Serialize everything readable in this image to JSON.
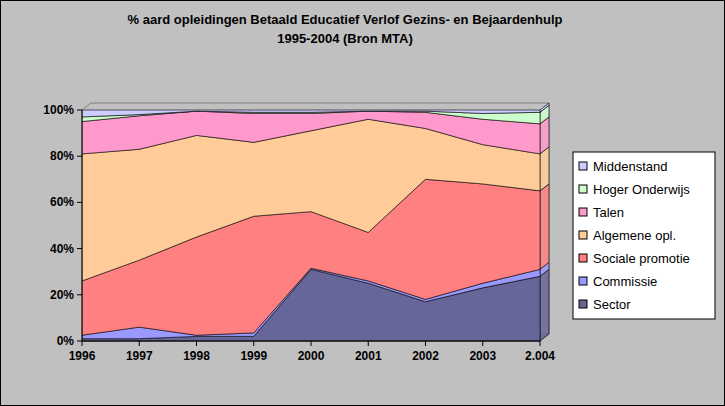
{
  "chart_data": {
    "type": "area",
    "stacked": true,
    "title": "% aard opleidingen Betaald Educatief Verlof Gezins- en Bejaardenhulp\n1995-2004 (Bron MTA)",
    "categories": [
      "1996",
      "1997",
      "1998",
      "1999",
      "2000",
      "2001",
      "2002",
      "2003",
      "2.004"
    ],
    "series": [
      {
        "name": "Sector",
        "color": "#666699",
        "values": [
          1,
          1,
          2,
          2,
          31,
          25,
          17,
          23,
          28
        ]
      },
      {
        "name": "Commissie",
        "color": "#9999ff",
        "values": [
          1.5,
          5,
          0.5,
          1.5,
          0.5,
          1,
          1,
          2,
          3
        ]
      },
      {
        "name": "Sociale promotie",
        "color": "#ff8080",
        "values": [
          23.5,
          29,
          42.5,
          50.5,
          24.5,
          21,
          52,
          43,
          34
        ]
      },
      {
        "name": "Algemene opl.",
        "color": "#ffcc99",
        "values": [
          55,
          48,
          44,
          32,
          35,
          49,
          22,
          17,
          16
        ]
      },
      {
        "name": "Talen",
        "color": "#ff99cc",
        "values": [
          14,
          14.5,
          10.5,
          12.5,
          7.5,
          3.5,
          7,
          11,
          13
        ]
      },
      {
        "name": "Hoger Onderwijs",
        "color": "#ccffcc",
        "values": [
          2,
          0.5,
          0,
          0.5,
          0.5,
          0,
          0.5,
          2.5,
          5
        ]
      },
      {
        "name": "Middenstand",
        "color": "#ccccff",
        "values": [
          3,
          2,
          0.5,
          1,
          1,
          0.5,
          0.5,
          1.5,
          1
        ]
      }
    ],
    "ylim": [
      0,
      100
    ],
    "yticks": [
      {
        "value": 0,
        "label": "0%"
      },
      {
        "value": 20,
        "label": "20%"
      },
      {
        "value": 40,
        "label": "40%"
      },
      {
        "value": 60,
        "label": "60%"
      },
      {
        "value": 80,
        "label": "80%"
      },
      {
        "value": 100,
        "label": "100%"
      }
    ],
    "grid": false,
    "legend": "right"
  }
}
